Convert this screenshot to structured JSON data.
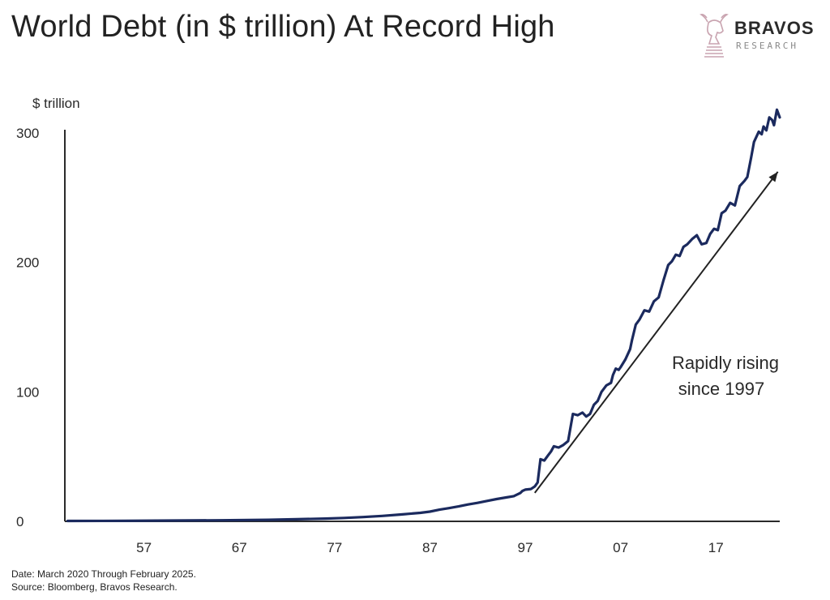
{
  "title": "World Debt (in $ trillion) At Record High",
  "logo": {
    "brand": "BRAVOS",
    "sub": "RESEARCH",
    "icon": "bull-chess-knight-icon"
  },
  "colors": {
    "series": "#1b2a5e",
    "axis": "#2a2a2a",
    "text": "#2a2a2a",
    "logo_accent": "#c9a4b0"
  },
  "footer": {
    "date_note": "Date: March 2020 Through February 2025.",
    "source": "Source: Bloomberg, Bravos Research."
  },
  "chart_data": {
    "type": "line",
    "title": "World Debt (in $ trillion) At Record High",
    "ylabel": "$ trillion",
    "xlabel": "",
    "ylim": [
      0,
      310
    ],
    "xlim": [
      1948.7,
      2023.7
    ],
    "yticks": [
      0,
      100,
      200,
      300
    ],
    "xtick_labels": [
      "57",
      "67",
      "77",
      "87",
      "97",
      "07",
      "17"
    ],
    "xtick_values": [
      1957,
      1967,
      1977,
      1987,
      1997,
      2007,
      2017
    ],
    "grid": false,
    "legend": "none",
    "annotation": {
      "text_line1": "Rapidly rising",
      "text_line2": "since 1997",
      "arrow_from": [
        1998,
        22
      ],
      "arrow_to": [
        2023.5,
        270
      ]
    },
    "series": [
      {
        "x": [
          1949,
          1955,
          1960,
          1965,
          1970,
          1973,
          1976,
          1978,
          1980,
          1982,
          1984,
          1986,
          1987,
          1988,
          1989,
          1990,
          1991,
          1992,
          1993,
          1994,
          1995,
          1995.8,
          1996.5,
          1996.7,
          1997,
          1997.6,
          1998,
          1998.3,
          1998.6,
          1999,
          1999.4,
          1999.7,
          2000,
          2000.5,
          2001,
          2001.5,
          2002,
          2002.5,
          2003,
          2003.4,
          2003.8,
          2004.2,
          2004.6,
          2005,
          2005.5,
          2006,
          2006.2,
          2006.5,
          2006.8,
          2007,
          2007.5,
          2008,
          2008.2,
          2008.6,
          2009,
          2009.5,
          2010,
          2010.5,
          2011,
          2011.5,
          2012,
          2012.4,
          2012.8,
          2013.2,
          2013.6,
          2014,
          2014.5,
          2015,
          2015.5,
          2016,
          2016.4,
          2016.8,
          2017.2,
          2017.6,
          2018,
          2018.5,
          2019,
          2019.5,
          2020,
          2020.3,
          2020.7,
          2021,
          2021.5,
          2021.8,
          2022,
          2022.3,
          2022.6,
          2022.9,
          2023.1,
          2023.4,
          2023.7
        ],
        "values": [
          0.3,
          0.4,
          0.6,
          0.8,
          1.2,
          1.6,
          2.1,
          2.6,
          3.3,
          4.2,
          5.3,
          6.6,
          7.5,
          9.0,
          10.2,
          11.5,
          13.0,
          14.3,
          15.8,
          17.2,
          18.5,
          19.5,
          22,
          23.5,
          24.5,
          25,
          27,
          30,
          48,
          47,
          51,
          54,
          58,
          57,
          59,
          62,
          83,
          82,
          84,
          81,
          83,
          90,
          93,
          100,
          105,
          107,
          113,
          118,
          117,
          119,
          125,
          133,
          140,
          152,
          156,
          163,
          162,
          170,
          173,
          186,
          198,
          201,
          206,
          205,
          212,
          214,
          218,
          221,
          214,
          215,
          222,
          226,
          225,
          238,
          240,
          246,
          244,
          259,
          263,
          266,
          281,
          293,
          301,
          299,
          305,
          302,
          312,
          310,
          306,
          318,
          312
        ]
      }
    ]
  }
}
